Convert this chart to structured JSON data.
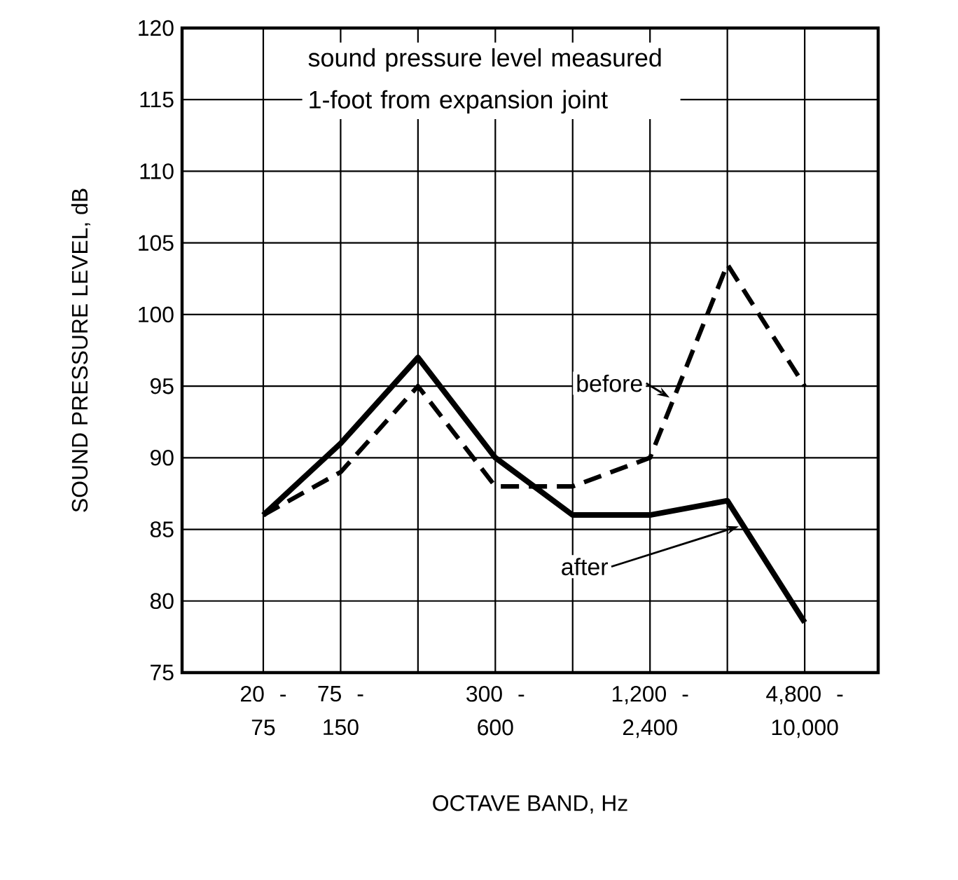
{
  "chart_data": {
    "type": "line",
    "xlabel": "OCTAVE BAND, Hz",
    "ylabel": "SOUND PRESSURE LEVEL, dB",
    "categories": [
      "20 - 75",
      "75 - 150",
      null,
      "300 - 600",
      null,
      "1,200 - 2,400",
      null,
      "4,800 - 10,000"
    ],
    "series": [
      {
        "name": "before",
        "color": "#000000",
        "line_style": "dashed",
        "values": [
          86,
          89,
          95,
          88,
          88,
          90,
          103.5,
          95
        ]
      },
      {
        "name": "after",
        "color": "#000000",
        "line_style": "solid",
        "values": [
          86,
          91,
          97,
          90,
          86,
          86,
          87,
          78.5
        ]
      }
    ],
    "ylim": [
      75,
      120
    ],
    "yticks": [
      75,
      80,
      85,
      90,
      95,
      100,
      105,
      110,
      115,
      120
    ],
    "grid": true,
    "annotations": [
      "sound pressure level measured 1-foot from expansion joint"
    ]
  }
}
